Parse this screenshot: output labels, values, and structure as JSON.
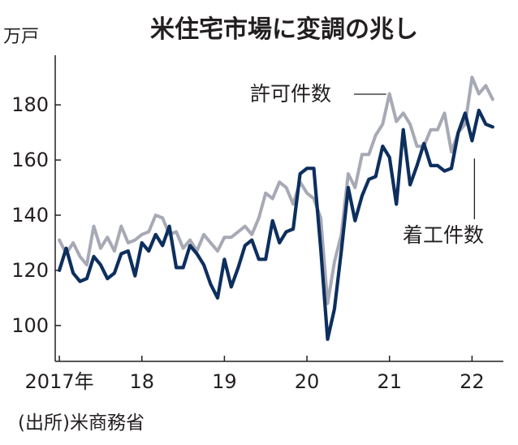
{
  "chart_data": {
    "type": "line",
    "title": "米住宅市場に変調の兆し",
    "y_unit": "万戸",
    "source": "(出所)米商務省",
    "ylim": [
      87,
      198
    ],
    "yticks": [
      100,
      120,
      140,
      160,
      180
    ],
    "xlim": [
      2016.95,
      2022.38
    ],
    "xticks": [
      {
        "value": 2017,
        "label": "2017年"
      },
      {
        "value": 2018,
        "label": "18"
      },
      {
        "value": 2019,
        "label": "19"
      },
      {
        "value": 2020,
        "label": "20"
      },
      {
        "value": 2021,
        "label": "21"
      },
      {
        "value": 2022,
        "label": "22"
      }
    ],
    "series": [
      {
        "name": "許可件数",
        "color": "#a7a9b5",
        "x": [
          2017.0,
          2017.083,
          2017.167,
          2017.25,
          2017.333,
          2017.417,
          2017.5,
          2017.583,
          2017.667,
          2017.75,
          2017.833,
          2017.917,
          2018.0,
          2018.083,
          2018.167,
          2018.25,
          2018.333,
          2018.417,
          2018.5,
          2018.583,
          2018.667,
          2018.75,
          2018.833,
          2018.917,
          2019.0,
          2019.083,
          2019.167,
          2019.25,
          2019.333,
          2019.417,
          2019.5,
          2019.583,
          2019.667,
          2019.75,
          2019.833,
          2019.917,
          2020.0,
          2020.083,
          2020.167,
          2020.25,
          2020.333,
          2020.417,
          2020.5,
          2020.583,
          2020.667,
          2020.75,
          2020.833,
          2020.917,
          2021.0,
          2021.083,
          2021.167,
          2021.25,
          2021.333,
          2021.417,
          2021.5,
          2021.583,
          2021.667,
          2021.75,
          2021.833,
          2021.917,
          2022.0,
          2022.083,
          2022.167,
          2022.25
        ],
        "values": [
          131,
          126,
          130,
          125,
          122,
          136,
          128,
          132,
          127,
          136,
          130,
          131,
          133,
          134,
          140,
          139,
          133,
          134,
          128,
          131,
          127,
          133,
          130,
          127,
          132,
          132,
          134,
          136,
          133,
          139,
          148,
          146,
          152,
          150,
          144,
          152,
          148,
          146,
          139,
          108,
          123,
          133,
          155,
          150,
          162,
          162,
          169,
          173,
          184,
          174,
          177,
          173,
          165,
          165,
          171,
          171,
          177,
          163,
          170,
          173,
          190,
          184,
          187,
          182
        ]
      },
      {
        "name": "着工件数",
        "color": "#0d2f5e",
        "x": [
          2017.0,
          2017.083,
          2017.167,
          2017.25,
          2017.333,
          2017.417,
          2017.5,
          2017.583,
          2017.667,
          2017.75,
          2017.833,
          2017.917,
          2018.0,
          2018.083,
          2018.167,
          2018.25,
          2018.333,
          2018.417,
          2018.5,
          2018.583,
          2018.667,
          2018.75,
          2018.833,
          2018.917,
          2019.0,
          2019.083,
          2019.167,
          2019.25,
          2019.333,
          2019.417,
          2019.5,
          2019.583,
          2019.667,
          2019.75,
          2019.833,
          2019.917,
          2020.0,
          2020.083,
          2020.167,
          2020.25,
          2020.333,
          2020.417,
          2020.5,
          2020.583,
          2020.667,
          2020.75,
          2020.833,
          2020.917,
          2021.0,
          2021.083,
          2021.167,
          2021.25,
          2021.333,
          2021.417,
          2021.5,
          2021.583,
          2021.667,
          2021.75,
          2021.833,
          2021.917,
          2022.0,
          2022.083,
          2022.167,
          2022.25
        ],
        "values": [
          120,
          128,
          119,
          116,
          117,
          125,
          122,
          117,
          119,
          126,
          127,
          118,
          130,
          127,
          133,
          129,
          136,
          121,
          121,
          129,
          126,
          122,
          115,
          110,
          124,
          114,
          121,
          129,
          131,
          124,
          124,
          138,
          130,
          134,
          135,
          155,
          157,
          157,
          128,
          95,
          106,
          127,
          150,
          138,
          147,
          153,
          154,
          165,
          161,
          144,
          171,
          151,
          158,
          166,
          158,
          158,
          156,
          157,
          170,
          177,
          167,
          178,
          173,
          172
        ]
      }
    ]
  }
}
